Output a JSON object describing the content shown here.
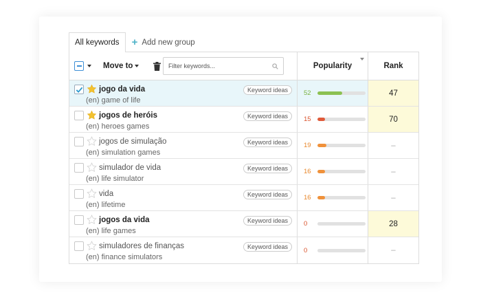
{
  "tabs": {
    "active": "All keywords",
    "add_label": "Add new group"
  },
  "toolbar": {
    "move_to": "Move to",
    "filter_placeholder": "Filter keywords..."
  },
  "columns": {
    "popularity": "Popularity",
    "rank": "Rank"
  },
  "colors": {
    "accent": "#3d8fd6",
    "star_filled": "#f2c230",
    "bar_green": "#8cc152",
    "bar_red": "#e05a3a",
    "bar_orange": "#f0913a"
  },
  "rows": [
    {
      "keyword": "jogo da vida",
      "translation": "(en) game of life",
      "ideas": "Keyword ideas",
      "popularity": 52,
      "popularity_pct": 52,
      "bar_color": "#8cc152",
      "num_color": "#7cb342",
      "rank": "47",
      "starred": true,
      "checked": true,
      "bold": true
    },
    {
      "keyword": "jogos de heróis",
      "translation": "(en) heroes games",
      "ideas": "Keyword ideas",
      "popularity": 15,
      "popularity_pct": 15,
      "bar_color": "#e05a3a",
      "num_color": "#d9532c",
      "rank": "70",
      "starred": true,
      "checked": false,
      "bold": true
    },
    {
      "keyword": "jogos de simulação",
      "translation": "(en) simulation games",
      "ideas": "Keyword ideas",
      "popularity": 19,
      "popularity_pct": 19,
      "bar_color": "#f0913a",
      "num_color": "#e8862a",
      "rank": "–",
      "starred": false,
      "checked": false,
      "bold": false
    },
    {
      "keyword": "simulador de vida",
      "translation": "(en) life simulator",
      "ideas": "Keyword ideas",
      "popularity": 16,
      "popularity_pct": 16,
      "bar_color": "#f0913a",
      "num_color": "#e8862a",
      "rank": "–",
      "starred": false,
      "checked": false,
      "bold": false
    },
    {
      "keyword": "vida",
      "translation": "(en) lifetime",
      "ideas": "Keyword ideas",
      "popularity": 16,
      "popularity_pct": 16,
      "bar_color": "#f0913a",
      "num_color": "#e8862a",
      "rank": "–",
      "starred": false,
      "checked": false,
      "bold": false
    },
    {
      "keyword": "jogos da vida",
      "translation": "(en) life games",
      "ideas": "Keyword ideas",
      "popularity": 0,
      "popularity_pct": 0,
      "bar_color": "#e05a3a",
      "num_color": "#d9532c",
      "rank": "28",
      "starred": false,
      "checked": false,
      "bold": true
    },
    {
      "keyword": "simuladores de finanças",
      "translation": "(en) finance simulators",
      "ideas": "Keyword ideas",
      "popularity": 0,
      "popularity_pct": 0,
      "bar_color": "#e05a3a",
      "num_color": "#d9532c",
      "rank": "–",
      "starred": false,
      "checked": false,
      "bold": false
    }
  ]
}
